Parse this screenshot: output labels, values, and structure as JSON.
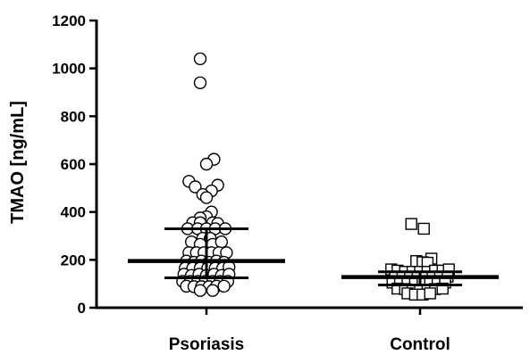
{
  "chart_data": {
    "type": "scatter",
    "title": "",
    "xlabel": "",
    "ylabel": "TMAO [ng/mL]",
    "ylim": [
      0,
      1200
    ],
    "yticks": [
      0,
      200,
      400,
      600,
      800,
      1000,
      1200
    ],
    "grid": false,
    "categories": [
      "Psoriasis",
      "Control"
    ],
    "series": [
      {
        "marker": "circle",
        "median": 195,
        "iqr": [
          125,
          330
        ],
        "points": [
          {
            "dx": -0.5,
            "y": 1040
          },
          {
            "dx": -0.5,
            "y": 940
          },
          {
            "dx": 0.6,
            "y": 620
          },
          {
            "dx": 0.0,
            "y": 600
          },
          {
            "dx": -1.4,
            "y": 528
          },
          {
            "dx": 0.9,
            "y": 512
          },
          {
            "dx": -0.9,
            "y": 505
          },
          {
            "dx": 0.4,
            "y": 488
          },
          {
            "dx": -0.3,
            "y": 473
          },
          {
            "dx": 0.0,
            "y": 460
          },
          {
            "dx": 0.4,
            "y": 400
          },
          {
            "dx": 0.0,
            "y": 380
          },
          {
            "dx": -0.5,
            "y": 375
          },
          {
            "dx": -1.1,
            "y": 355
          },
          {
            "dx": -0.5,
            "y": 355
          },
          {
            "dx": 0.5,
            "y": 355
          },
          {
            "dx": 0.9,
            "y": 352
          },
          {
            "dx": -1.5,
            "y": 330
          },
          {
            "dx": -0.7,
            "y": 330
          },
          {
            "dx": 0.0,
            "y": 330
          },
          {
            "dx": 0.7,
            "y": 330
          },
          {
            "dx": 1.5,
            "y": 330
          },
          {
            "dx": -0.3,
            "y": 290
          },
          {
            "dx": 0.3,
            "y": 290
          },
          {
            "dx": -1.2,
            "y": 275
          },
          {
            "dx": -0.5,
            "y": 265
          },
          {
            "dx": 0.5,
            "y": 265
          },
          {
            "dx": 1.2,
            "y": 275
          },
          {
            "dx": -1.4,
            "y": 230
          },
          {
            "dx": -0.8,
            "y": 230
          },
          {
            "dx": -0.2,
            "y": 230
          },
          {
            "dx": 0.4,
            "y": 230
          },
          {
            "dx": 1.0,
            "y": 230
          },
          {
            "dx": 1.6,
            "y": 230
          },
          {
            "dx": -1.6,
            "y": 195
          },
          {
            "dx": -1.0,
            "y": 190
          },
          {
            "dx": -0.4,
            "y": 195
          },
          {
            "dx": 0.2,
            "y": 190
          },
          {
            "dx": 0.8,
            "y": 195
          },
          {
            "dx": 1.4,
            "y": 190
          },
          {
            "dx": -1.7,
            "y": 165
          },
          {
            "dx": -1.1,
            "y": 165
          },
          {
            "dx": -0.5,
            "y": 165
          },
          {
            "dx": 0.1,
            "y": 165
          },
          {
            "dx": 0.7,
            "y": 165
          },
          {
            "dx": 1.3,
            "y": 165
          },
          {
            "dx": 1.8,
            "y": 170
          },
          {
            "dx": -1.8,
            "y": 140
          },
          {
            "dx": -1.2,
            "y": 135
          },
          {
            "dx": -0.6,
            "y": 140
          },
          {
            "dx": 0.0,
            "y": 135
          },
          {
            "dx": 0.6,
            "y": 140
          },
          {
            "dx": 1.2,
            "y": 135
          },
          {
            "dx": 1.8,
            "y": 140
          },
          {
            "dx": -1.9,
            "y": 110
          },
          {
            "dx": -1.3,
            "y": 110
          },
          {
            "dx": -0.7,
            "y": 110
          },
          {
            "dx": -0.1,
            "y": 110
          },
          {
            "dx": 0.5,
            "y": 110
          },
          {
            "dx": 1.1,
            "y": 110
          },
          {
            "dx": 1.7,
            "y": 110
          },
          {
            "dx": -1.6,
            "y": 90
          },
          {
            "dx": -1.0,
            "y": 88
          },
          {
            "dx": -0.4,
            "y": 88
          },
          {
            "dx": 0.2,
            "y": 88
          },
          {
            "dx": 0.8,
            "y": 90
          },
          {
            "dx": 1.4,
            "y": 90
          },
          {
            "dx": -0.5,
            "y": 72
          },
          {
            "dx": 0.5,
            "y": 72
          }
        ]
      },
      {
        "marker": "square",
        "median": 128,
        "iqr": [
          95,
          150
        ],
        "points": [
          {
            "dx": -0.7,
            "y": 350
          },
          {
            "dx": 0.3,
            "y": 330
          },
          {
            "dx": 0.9,
            "y": 205
          },
          {
            "dx": -0.3,
            "y": 195
          },
          {
            "dx": 0.2,
            "y": 190
          },
          {
            "dx": 0.6,
            "y": 188
          },
          {
            "dx": -2.3,
            "y": 160
          },
          {
            "dx": -1.8,
            "y": 155
          },
          {
            "dx": -1.2,
            "y": 150
          },
          {
            "dx": -0.6,
            "y": 150
          },
          {
            "dx": 0.0,
            "y": 150
          },
          {
            "dx": 0.6,
            "y": 150
          },
          {
            "dx": 1.2,
            "y": 155
          },
          {
            "dx": 1.8,
            "y": 155
          },
          {
            "dx": 2.3,
            "y": 160
          },
          {
            "dx": -2.0,
            "y": 130
          },
          {
            "dx": -1.4,
            "y": 130
          },
          {
            "dx": -0.8,
            "y": 125
          },
          {
            "dx": -0.2,
            "y": 125
          },
          {
            "dx": 0.4,
            "y": 128
          },
          {
            "dx": 1.0,
            "y": 128
          },
          {
            "dx": 1.6,
            "y": 130
          },
          {
            "dx": 2.2,
            "y": 130
          },
          {
            "dx": -2.2,
            "y": 105
          },
          {
            "dx": -1.6,
            "y": 105
          },
          {
            "dx": -1.0,
            "y": 105
          },
          {
            "dx": -0.4,
            "y": 100
          },
          {
            "dx": 0.2,
            "y": 100
          },
          {
            "dx": 0.8,
            "y": 105
          },
          {
            "dx": 1.4,
            "y": 105
          },
          {
            "dx": 2.0,
            "y": 105
          },
          {
            "dx": -1.8,
            "y": 80
          },
          {
            "dx": -1.2,
            "y": 78
          },
          {
            "dx": -0.6,
            "y": 75
          },
          {
            "dx": 0.0,
            "y": 75
          },
          {
            "dx": 0.6,
            "y": 75
          },
          {
            "dx": 1.2,
            "y": 78
          },
          {
            "dx": 1.8,
            "y": 80
          },
          {
            "dx": -1.0,
            "y": 60
          },
          {
            "dx": -0.4,
            "y": 55
          },
          {
            "dx": 0.2,
            "y": 55
          },
          {
            "dx": 0.8,
            "y": 60
          }
        ]
      }
    ]
  }
}
